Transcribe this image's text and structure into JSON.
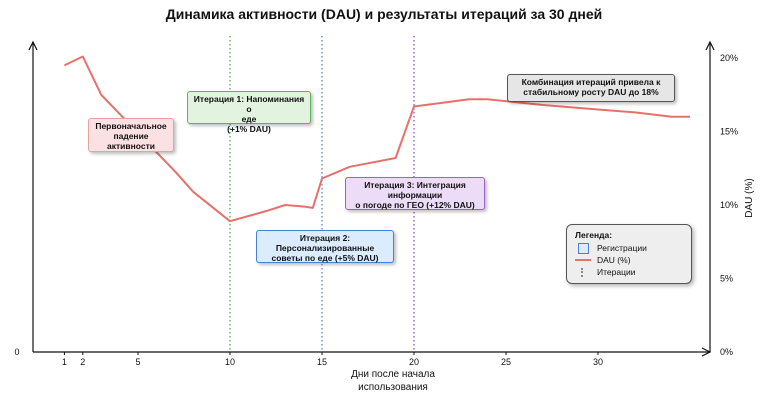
{
  "chart_data": {
    "type": "line",
    "title": "Динамика активности (DAU) и результаты итераций за 30 дней",
    "xlabel": "Дни после начала использования",
    "ylabel": "DAU (%)",
    "xlim": [
      0,
      35
    ],
    "ylim": [
      0,
      20
    ],
    "x_ticks": [
      1,
      2,
      5,
      10,
      15,
      20,
      25,
      30
    ],
    "y_ticks": [
      "0%",
      "5%",
      "10%",
      "15%",
      "20%"
    ],
    "origin_label": "0",
    "grid": false,
    "series": [
      {
        "name": "DAU (%)",
        "color": "#e8706a",
        "points": [
          [
            1,
            19.5
          ],
          [
            2,
            20.1
          ],
          [
            3,
            17.5
          ],
          [
            5,
            14.9
          ],
          [
            7,
            12.3
          ],
          [
            8,
            10.9
          ],
          [
            10,
            8.9
          ],
          [
            12,
            9.6
          ],
          [
            13,
            10.0
          ],
          [
            14,
            9.9
          ],
          [
            14.5,
            9.8
          ],
          [
            15,
            11.8
          ],
          [
            16.5,
            12.6
          ],
          [
            19,
            13.2
          ],
          [
            20,
            16.7
          ],
          [
            23,
            17.2
          ],
          [
            24,
            17.2
          ],
          [
            27,
            16.8
          ],
          [
            30,
            16.5
          ],
          [
            32,
            16.3
          ],
          [
            34,
            16.0
          ],
          [
            35,
            16.0
          ]
        ]
      }
    ],
    "iterations": [
      {
        "x": 10,
        "color": "#3aa84a"
      },
      {
        "x": 15,
        "color": "#4a7fd8"
      },
      {
        "x": 20,
        "color": "#8a4ad0"
      }
    ],
    "annotations": [
      {
        "lines": [
          "Первоначальное",
          "падение",
          "активности"
        ],
        "bg": "#fbe1e1",
        "border": "#e8a0a0"
      },
      {
        "lines": [
          "Итерация 1: Напоминания о",
          "еде",
          "(+1% DAU)"
        ],
        "bg": "#e2f4e0",
        "border": "#5bb35b"
      },
      {
        "lines": [
          "Итерация 2:",
          "Персонализированные",
          "советы по еде (+5% DAU)"
        ],
        "bg": "#dcecff",
        "border": "#4a7fd8"
      },
      {
        "lines": [
          "Итерация 3: Интеграция",
          "информации",
          "о погоде по ГЕО (+12% DAU)"
        ],
        "bg": "#ecdcf7",
        "border": "#9a63c9"
      },
      {
        "lines": [
          "Комбинация итераций привела к",
          "стабильному росту DAU до 18%"
        ],
        "bg": "#e6e6e6",
        "border": "#555555"
      }
    ],
    "legend": {
      "title": "Легенда:",
      "items": [
        "Регистрации",
        "DAU (%)",
        "Итерации"
      ],
      "position": "right"
    }
  }
}
